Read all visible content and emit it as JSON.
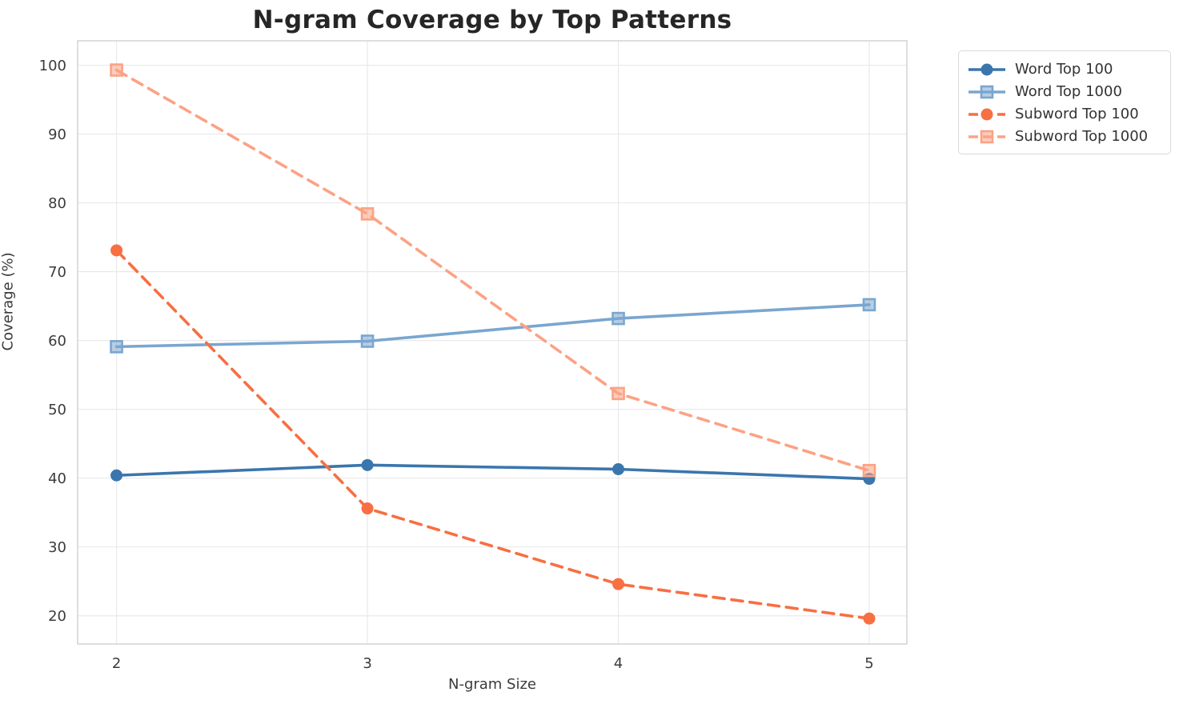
{
  "chart_data": {
    "type": "line",
    "title": "N-gram Coverage by Top Patterns",
    "xlabel": "N-gram Size",
    "ylabel": "Coverage (%)",
    "x": [
      2,
      3,
      4,
      5
    ],
    "xticks": [
      2,
      3,
      4,
      5
    ],
    "yticks": [
      20,
      30,
      40,
      50,
      60,
      70,
      80,
      90,
      100
    ],
    "xlim": [
      1.845,
      5.15
    ],
    "ylim": [
      15.9,
      103.55
    ],
    "grid": true,
    "legend_position": "outside-right",
    "series": [
      {
        "name": "Word Top 100",
        "values": [
          40.4,
          41.9,
          41.3,
          39.9
        ],
        "color": "#3a76ad",
        "line_style": "solid",
        "marker": "circle"
      },
      {
        "name": "Word Top 1000",
        "values": [
          59.1,
          59.9,
          63.2,
          65.2
        ],
        "color": "#7aa6d0",
        "line_style": "solid",
        "marker": "square"
      },
      {
        "name": "Subword Top 100",
        "values": [
          73.1,
          35.6,
          24.6,
          19.6
        ],
        "color": "#f76f42",
        "line_style": "dashed",
        "marker": "circle"
      },
      {
        "name": "Subword Top 1000",
        "values": [
          99.3,
          78.4,
          52.3,
          41.1
        ],
        "color": "#fca284",
        "line_style": "dashed",
        "marker": "square"
      }
    ]
  }
}
